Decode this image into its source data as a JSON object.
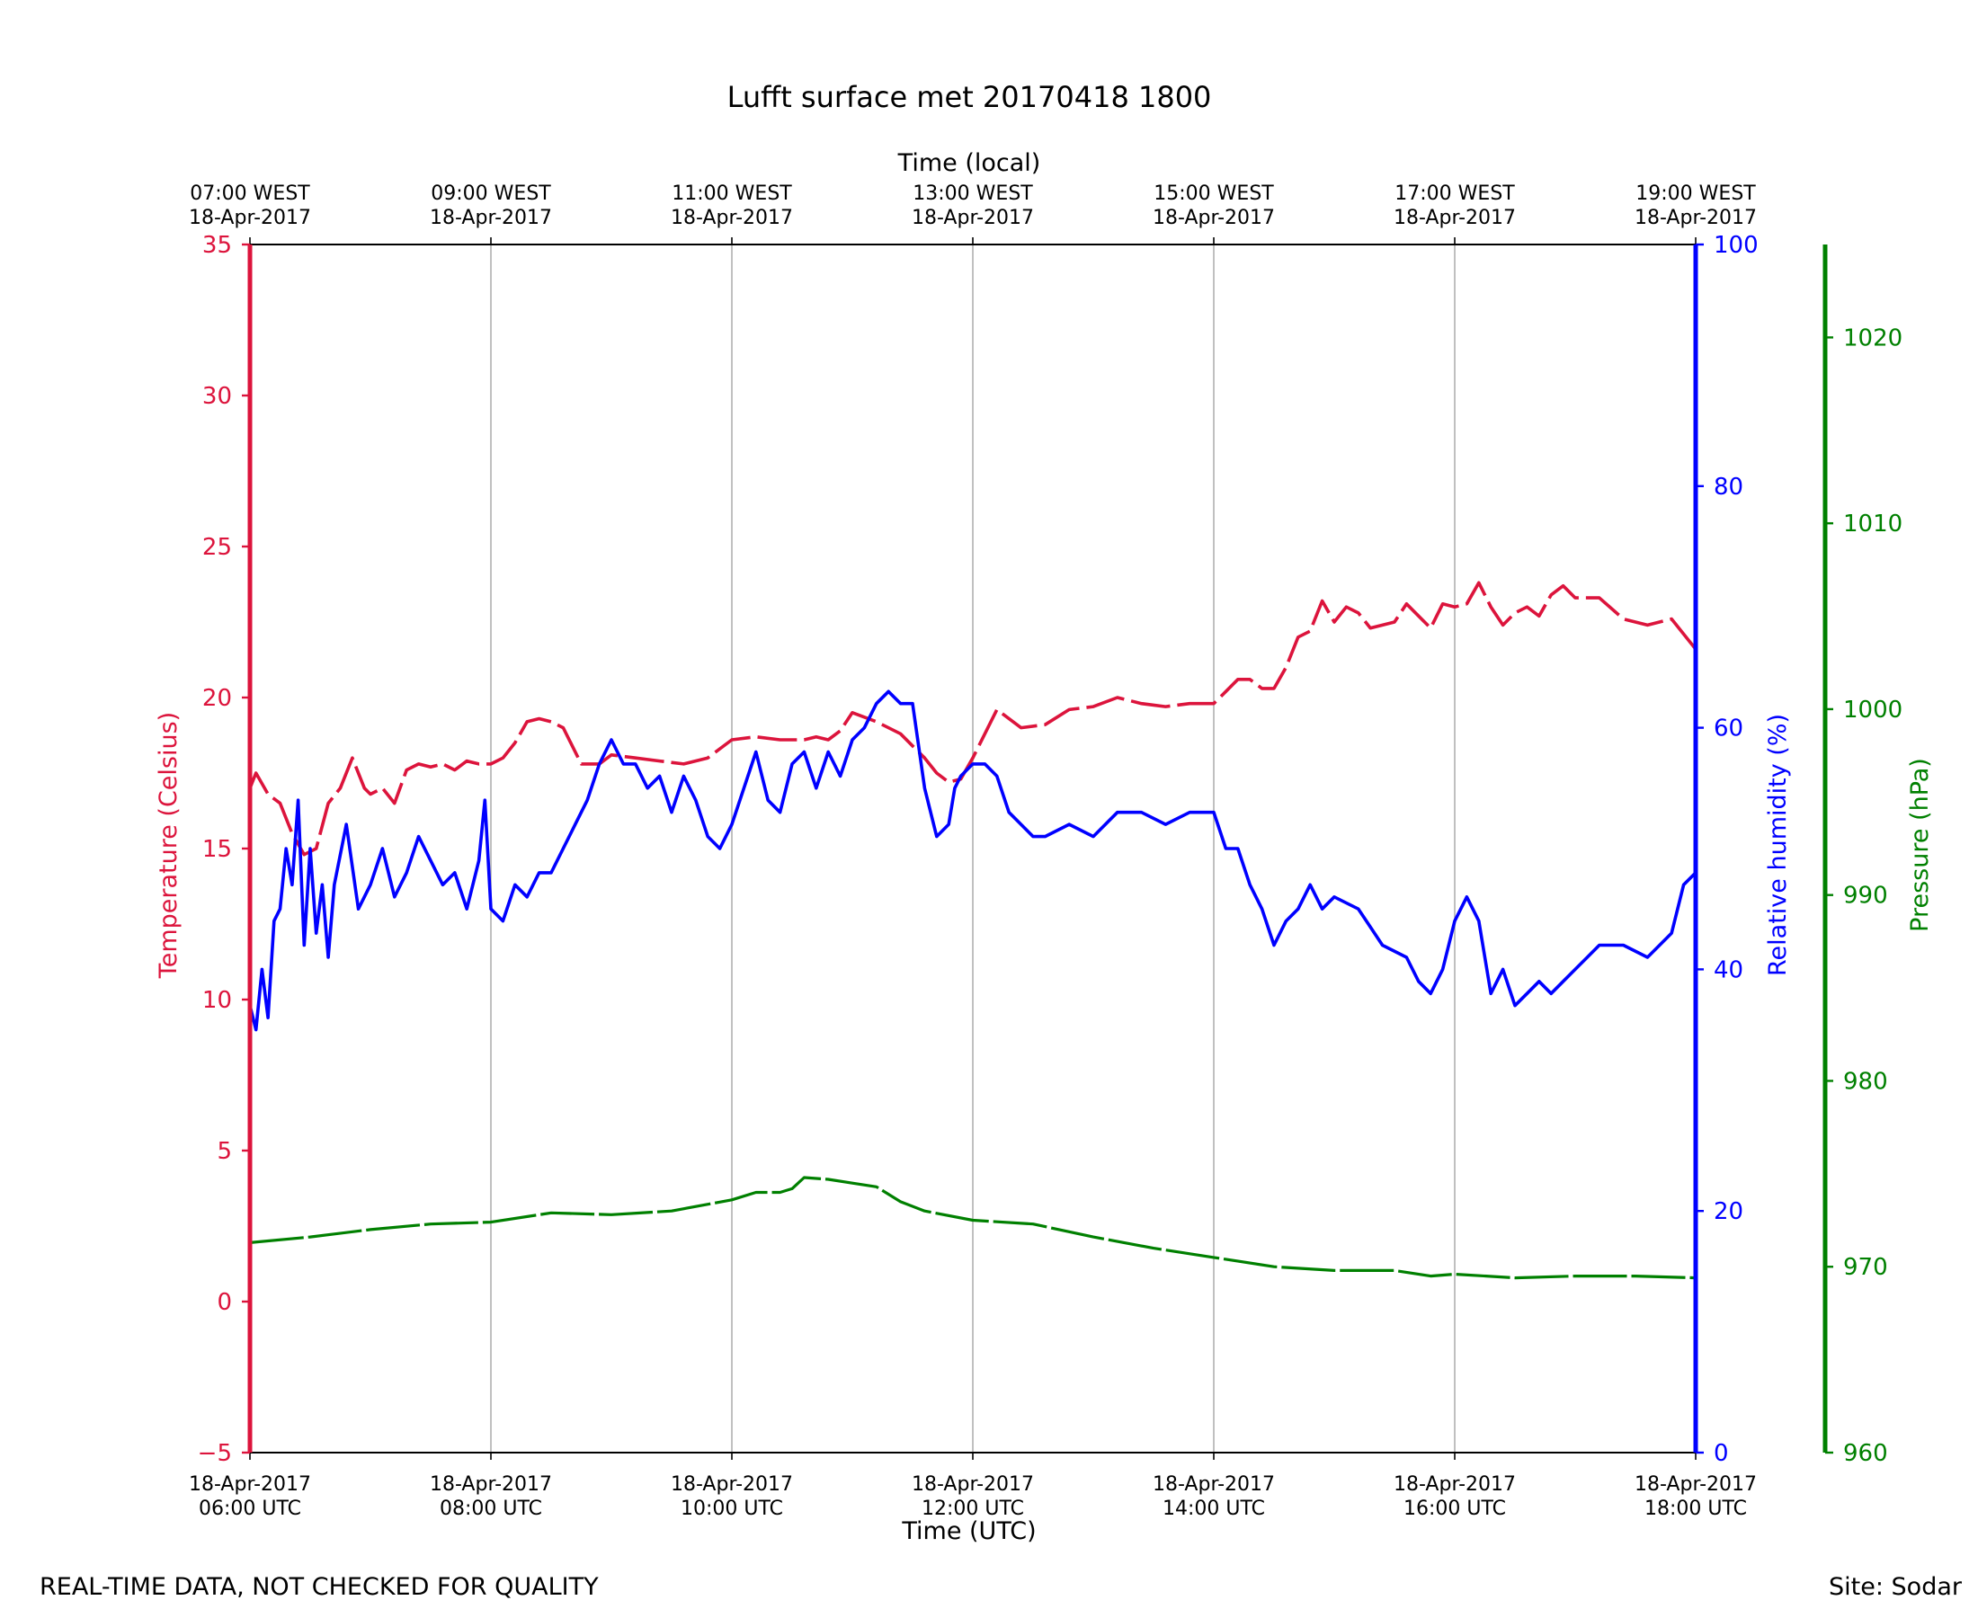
{
  "chart_data": {
    "type": "line",
    "title": "Lufft surface met 20170418 1800",
    "xlabel": "Time (UTC)",
    "x2label": "Time (local)",
    "x_ticks_utc": [
      [
        "18-Apr-2017",
        "06:00 UTC"
      ],
      [
        "18-Apr-2017",
        "08:00 UTC"
      ],
      [
        "18-Apr-2017",
        "10:00 UTC"
      ],
      [
        "18-Apr-2017",
        "12:00 UTC"
      ],
      [
        "18-Apr-2017",
        "14:00 UTC"
      ],
      [
        "18-Apr-2017",
        "16:00 UTC"
      ],
      [
        "18-Apr-2017",
        "18:00 UTC"
      ]
    ],
    "x_ticks_local": [
      [
        "07:00 WEST",
        "18-Apr-2017"
      ],
      [
        "09:00 WEST",
        "18-Apr-2017"
      ],
      [
        "11:00 WEST",
        "18-Apr-2017"
      ],
      [
        "13:00 WEST",
        "18-Apr-2017"
      ],
      [
        "15:00 WEST",
        "18-Apr-2017"
      ],
      [
        "17:00 WEST",
        "18-Apr-2017"
      ],
      [
        "19:00 WEST",
        "18-Apr-2017"
      ]
    ],
    "xlim_hours_utc": [
      6,
      18
    ],
    "grid": "vertical",
    "axes": {
      "temperature": {
        "label": "Temperature (Celsius)",
        "ylim": [
          -5,
          35
        ],
        "ticks": [
          "−5",
          "0",
          "5",
          "10",
          "15",
          "20",
          "25",
          "30",
          "35"
        ],
        "color": "#dc143c"
      },
      "humidity": {
        "label": "Relative humidity (%)",
        "ylim": [
          0,
          100
        ],
        "ticks": [
          "0",
          "20",
          "40",
          "60",
          "80",
          "100"
        ],
        "color": "#0000ff"
      },
      "pressure": {
        "label": "Pressure (hPa)",
        "ylim": [
          960,
          1025
        ],
        "ticks": [
          "960",
          "970",
          "980",
          "990",
          "1000",
          "1010",
          "1020"
        ],
        "color": "#008000"
      }
    },
    "series": [
      {
        "key": "temperature",
        "color": "#dc143c",
        "x": [
          6.0,
          6.05,
          6.15,
          6.25,
          6.35,
          6.45,
          6.55,
          6.65,
          6.75,
          6.85,
          6.95,
          7.0,
          7.1,
          7.2,
          7.3,
          7.4,
          7.5,
          7.6,
          7.7,
          7.8,
          7.9,
          8.0,
          8.1,
          8.2,
          8.3,
          8.4,
          8.5,
          8.6,
          8.75,
          8.9,
          9.0,
          9.2,
          9.4,
          9.6,
          9.8,
          10.0,
          10.2,
          10.4,
          10.5,
          10.6,
          10.7,
          10.8,
          10.9,
          11.0,
          11.2,
          11.4,
          11.5,
          11.6,
          11.7,
          11.8,
          11.9,
          12.0,
          12.2,
          12.4,
          12.6,
          12.8,
          13.0,
          13.2,
          13.4,
          13.6,
          13.8,
          14.0,
          14.1,
          14.2,
          14.3,
          14.4,
          14.5,
          14.6,
          14.7,
          14.8,
          14.9,
          15.0,
          15.1,
          15.2,
          15.3,
          15.4,
          15.5,
          15.6,
          15.7,
          15.8,
          15.9,
          16.0,
          16.1,
          16.2,
          16.3,
          16.4,
          16.5,
          16.6,
          16.7,
          16.8,
          16.9,
          17.0,
          17.2,
          17.4,
          17.6,
          17.8,
          18.0
        ],
        "y": [
          17.0,
          17.5,
          16.8,
          16.5,
          15.5,
          14.8,
          15.0,
          16.5,
          17.0,
          18.0,
          17.0,
          16.8,
          17.0,
          16.5,
          17.6,
          17.8,
          17.7,
          17.8,
          17.6,
          17.9,
          17.8,
          17.8,
          18.0,
          18.5,
          19.2,
          19.3,
          19.2,
          19.0,
          17.8,
          17.8,
          18.1,
          18.0,
          17.9,
          17.8,
          18.0,
          18.6,
          18.7,
          18.6,
          18.6,
          18.6,
          18.7,
          18.6,
          18.9,
          19.5,
          19.2,
          18.8,
          18.4,
          18.0,
          17.5,
          17.2,
          17.3,
          18.0,
          19.6,
          19.0,
          19.1,
          19.6,
          19.7,
          20.0,
          19.8,
          19.7,
          19.8,
          19.8,
          20.2,
          20.6,
          20.6,
          20.3,
          20.3,
          21.0,
          22.0,
          22.2,
          23.2,
          22.5,
          23.0,
          22.8,
          22.3,
          22.4,
          22.5,
          23.1,
          22.7,
          22.3,
          23.1,
          23.0,
          23.1,
          23.8,
          23.0,
          22.4,
          22.8,
          23.0,
          22.7,
          23.4,
          23.7,
          23.3,
          23.3,
          22.6,
          22.4,
          22.6,
          21.6
        ]
      },
      {
        "key": "humidity",
        "color": "#0000ff",
        "x": [
          6.0,
          6.05,
          6.1,
          6.15,
          6.2,
          6.25,
          6.3,
          6.35,
          6.4,
          6.45,
          6.5,
          6.55,
          6.6,
          6.65,
          6.7,
          6.8,
          6.9,
          7.0,
          7.1,
          7.2,
          7.3,
          7.4,
          7.5,
          7.6,
          7.7,
          7.8,
          7.9,
          7.95,
          8.0,
          8.1,
          8.2,
          8.3,
          8.4,
          8.5,
          8.6,
          8.7,
          8.8,
          8.9,
          9.0,
          9.1,
          9.2,
          9.3,
          9.4,
          9.5,
          9.6,
          9.7,
          9.8,
          9.9,
          10.0,
          10.1,
          10.2,
          10.3,
          10.4,
          10.5,
          10.6,
          10.7,
          10.8,
          10.9,
          11.0,
          11.1,
          11.2,
          11.3,
          11.4,
          11.5,
          11.6,
          11.7,
          11.8,
          11.85,
          11.9,
          12.0,
          12.1,
          12.2,
          12.3,
          12.4,
          12.5,
          12.6,
          12.8,
          13.0,
          13.2,
          13.4,
          13.6,
          13.8,
          14.0,
          14.1,
          14.2,
          14.3,
          14.4,
          14.5,
          14.6,
          14.7,
          14.8,
          14.9,
          15.0,
          15.2,
          15.4,
          15.6,
          15.7,
          15.8,
          15.9,
          16.0,
          16.1,
          16.2,
          16.3,
          16.4,
          16.5,
          16.6,
          16.7,
          16.8,
          16.9,
          17.0,
          17.1,
          17.2,
          17.4,
          17.6,
          17.8,
          17.9,
          18.0
        ],
        "y": [
          37,
          35,
          40,
          36,
          44,
          45,
          50,
          47,
          54,
          42,
          50,
          43,
          47,
          41,
          47,
          52,
          45,
          47,
          50,
          46,
          48,
          51,
          49,
          47,
          48,
          45,
          49,
          54,
          45,
          44,
          47,
          46,
          48,
          48,
          50,
          52,
          54,
          57,
          59,
          57,
          57,
          55,
          56,
          53,
          56,
          54,
          51,
          50,
          52,
          55,
          58,
          54,
          53,
          57,
          58,
          55,
          58,
          56,
          59,
          60,
          62,
          63,
          62,
          62,
          55,
          51,
          52,
          55,
          56,
          57,
          57,
          56,
          53,
          52,
          51,
          51,
          52,
          51,
          53,
          53,
          52,
          53,
          53,
          50,
          50,
          47,
          45,
          42,
          44,
          45,
          47,
          45,
          46,
          45,
          42,
          41,
          39,
          38,
          40,
          44,
          46,
          44,
          38,
          40,
          37,
          38,
          39,
          38,
          39,
          40,
          41,
          42,
          42,
          41,
          43,
          47,
          48
        ]
      },
      {
        "key": "pressure",
        "color": "#008000",
        "x": [
          6.0,
          6.5,
          7.0,
          7.5,
          8.0,
          8.5,
          9.0,
          9.5,
          10.0,
          10.2,
          10.4,
          10.5,
          10.6,
          10.8,
          11.0,
          11.2,
          11.4,
          11.6,
          12.0,
          12.5,
          13.0,
          13.5,
          14.0,
          14.5,
          15.0,
          15.5,
          15.8,
          16.0,
          16.5,
          17.0,
          17.5,
          18.0
        ],
        "y": [
          971.3,
          971.6,
          972.0,
          972.3,
          972.4,
          972.9,
          972.8,
          973.0,
          973.6,
          974.0,
          974.0,
          974.2,
          974.8,
          974.7,
          974.5,
          974.3,
          973.5,
          973.0,
          972.5,
          972.3,
          971.6,
          971.0,
          970.5,
          970.0,
          969.8,
          969.8,
          969.5,
          969.6,
          969.4,
          969.5,
          969.5,
          969.4
        ]
      }
    ]
  },
  "footer": {
    "left": "REAL-TIME DATA, NOT CHECKED FOR QUALITY",
    "right": "Site: Sodar"
  }
}
